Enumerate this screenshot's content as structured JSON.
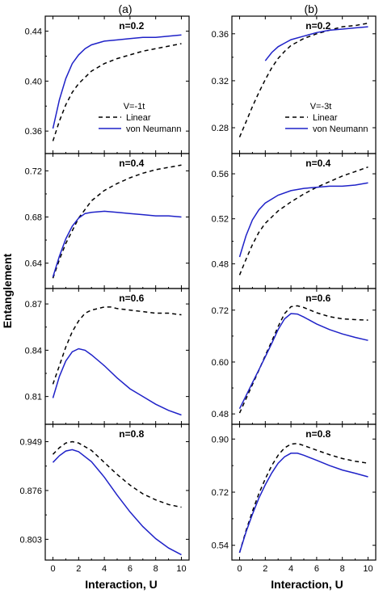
{
  "figure": {
    "column_labels": [
      "(a)",
      "(b)"
    ],
    "y_axis_title": "Entanglement",
    "x_axis_title": "Interaction, U"
  },
  "chart_data": [
    {
      "type": "line",
      "column": 0,
      "row": 0,
      "title": "n=0.2",
      "xlim": [
        -0.6,
        10.6
      ],
      "ylim": [
        0.342,
        0.452
      ],
      "xticks": [
        0,
        2,
        4,
        6,
        8,
        10
      ],
      "xtick_labels": [
        "",
        "",
        "",
        "",
        "",
        ""
      ],
      "yticks": [
        0.36,
        0.4,
        0.44
      ],
      "ytick_labels": [
        "0.36",
        "0.40",
        "0.44"
      ],
      "legend": {
        "header": "V=-1t",
        "entries": [
          "Linear",
          "von Neumann"
        ],
        "placement": "center-right"
      },
      "series": [
        {
          "name": "Linear",
          "style": "dashed",
          "color": "#000000",
          "x": [
            0,
            0.5,
            1,
            1.5,
            2,
            3,
            4,
            5,
            6,
            7,
            8,
            9,
            10
          ],
          "y": [
            0.352,
            0.368,
            0.381,
            0.391,
            0.398,
            0.408,
            0.414,
            0.418,
            0.421,
            0.424,
            0.426,
            0.428,
            0.43
          ]
        },
        {
          "name": "von Neumann",
          "style": "solid",
          "color": "#1f22c8",
          "x": [
            0,
            0.5,
            1,
            1.5,
            2,
            2.5,
            3,
            4,
            5,
            6,
            7,
            8,
            9,
            10
          ],
          "y": [
            0.362,
            0.385,
            0.402,
            0.414,
            0.421,
            0.426,
            0.429,
            0.432,
            0.433,
            0.434,
            0.435,
            0.435,
            0.436,
            0.437
          ]
        }
      ]
    },
    {
      "type": "line",
      "column": 0,
      "row": 1,
      "title": "n=0.4",
      "xlim": [
        -0.6,
        10.6
      ],
      "ylim": [
        0.618,
        0.735
      ],
      "xticks": [
        0,
        2,
        4,
        6,
        8,
        10
      ],
      "xtick_labels": [
        "",
        "",
        "",
        "",
        "",
        ""
      ],
      "yticks": [
        0.64,
        0.68,
        0.72
      ],
      "ytick_labels": [
        "0.64",
        "0.68",
        "0.72"
      ],
      "series": [
        {
          "name": "Linear",
          "style": "dashed",
          "color": "#000000",
          "x": [
            0,
            0.5,
            1,
            1.5,
            2,
            3,
            4,
            5,
            6,
            7,
            8,
            9,
            10
          ],
          "y": [
            0.627,
            0.643,
            0.657,
            0.668,
            0.679,
            0.694,
            0.703,
            0.709,
            0.714,
            0.718,
            0.721,
            0.723,
            0.725
          ]
        },
        {
          "name": "von Neumann",
          "style": "solid",
          "color": "#1f22c8",
          "x": [
            0,
            0.5,
            1,
            1.5,
            2,
            2.5,
            3,
            4,
            5,
            6,
            7,
            8,
            9,
            10
          ],
          "y": [
            0.628,
            0.646,
            0.661,
            0.672,
            0.679,
            0.683,
            0.684,
            0.685,
            0.684,
            0.683,
            0.682,
            0.681,
            0.681,
            0.68
          ]
        }
      ]
    },
    {
      "type": "line",
      "column": 0,
      "row": 2,
      "title": "n=0.6",
      "xlim": [
        -0.6,
        10.6
      ],
      "ylim": [
        0.792,
        0.88
      ],
      "xticks": [
        0,
        2,
        4,
        6,
        8,
        10
      ],
      "xtick_labels": [
        "",
        "",
        "",
        "",
        "",
        ""
      ],
      "yticks": [
        0.81,
        0.84,
        0.87
      ],
      "ytick_labels": [
        "0.81",
        "0.84",
        "0.87"
      ],
      "series": [
        {
          "name": "Linear",
          "style": "dashed",
          "color": "#000000",
          "x": [
            0,
            0.5,
            1,
            1.5,
            2,
            2.5,
            3,
            3.5,
            4,
            4.5,
            5,
            6,
            7,
            8,
            9,
            10
          ],
          "y": [
            0.818,
            0.83,
            0.842,
            0.852,
            0.859,
            0.864,
            0.866,
            0.867,
            0.868,
            0.868,
            0.867,
            0.866,
            0.865,
            0.864,
            0.864,
            0.863
          ]
        },
        {
          "name": "von Neumann",
          "style": "solid",
          "color": "#1f22c8",
          "x": [
            0,
            0.5,
            1,
            1.5,
            2,
            2.5,
            3,
            4,
            5,
            6,
            7,
            8,
            9,
            10
          ],
          "y": [
            0.809,
            0.823,
            0.833,
            0.839,
            0.841,
            0.84,
            0.837,
            0.83,
            0.822,
            0.815,
            0.81,
            0.805,
            0.801,
            0.798
          ]
        }
      ]
    },
    {
      "type": "line",
      "column": 0,
      "row": 3,
      "title": "n=0.8",
      "xlim": [
        -0.6,
        10.6
      ],
      "ylim": [
        0.772,
        0.975
      ],
      "xticks": [
        0,
        2,
        4,
        6,
        8,
        10
      ],
      "xtick_labels": [
        "0",
        "2",
        "4",
        "6",
        "8",
        "10"
      ],
      "yticks": [
        0.803,
        0.876,
        0.949
      ],
      "ytick_labels": [
        "0.803",
        "0.876",
        "0.949"
      ],
      "series": [
        {
          "name": "Linear",
          "style": "dashed",
          "color": "#000000",
          "x": [
            0,
            0.5,
            1,
            1.5,
            2,
            3,
            4,
            5,
            6,
            7,
            8,
            9,
            10
          ],
          "y": [
            0.93,
            0.94,
            0.947,
            0.949,
            0.947,
            0.936,
            0.918,
            0.9,
            0.884,
            0.871,
            0.862,
            0.855,
            0.851
          ]
        },
        {
          "name": "von Neumann",
          "style": "solid",
          "color": "#1f22c8",
          "x": [
            0,
            0.5,
            1,
            1.5,
            2,
            3,
            4,
            5,
            6,
            7,
            8,
            9,
            10
          ],
          "y": [
            0.918,
            0.928,
            0.935,
            0.937,
            0.934,
            0.919,
            0.896,
            0.869,
            0.844,
            0.822,
            0.804,
            0.79,
            0.78
          ]
        }
      ]
    },
    {
      "type": "line",
      "column": 1,
      "row": 0,
      "title": "n=0.2",
      "xlim": [
        -0.6,
        10.6
      ],
      "ylim": [
        0.258,
        0.375
      ],
      "xticks": [
        0,
        2,
        4,
        6,
        8,
        10
      ],
      "xtick_labels": [
        "",
        "",
        "",
        "",
        "",
        ""
      ],
      "yticks": [
        0.28,
        0.32,
        0.36
      ],
      "ytick_labels": [
        "0.28",
        "0.32",
        "0.36"
      ],
      "legend": {
        "header": "V=-3t",
        "entries": [
          "Linear",
          "von Neumann"
        ],
        "placement": "center-right"
      },
      "series": [
        {
          "name": "Linear",
          "style": "dashed",
          "color": "#000000",
          "x": [
            0,
            0.5,
            1,
            1.5,
            2,
            2.5,
            3,
            3.5,
            4,
            5,
            6,
            7,
            8,
            9,
            10
          ],
          "y": [
            0.272,
            0.285,
            0.298,
            0.31,
            0.321,
            0.331,
            0.339,
            0.345,
            0.35,
            0.356,
            0.36,
            0.363,
            0.366,
            0.367,
            0.369
          ]
        },
        {
          "name": "von Neumann",
          "style": "solid",
          "color": "#1f22c8",
          "x": [
            2,
            2.5,
            3,
            3.5,
            4,
            5,
            6,
            7,
            8,
            9,
            10
          ],
          "y": [
            0.337,
            0.344,
            0.349,
            0.352,
            0.355,
            0.358,
            0.361,
            0.363,
            0.364,
            0.365,
            0.366
          ]
        }
      ]
    },
    {
      "type": "line",
      "column": 1,
      "row": 1,
      "title": "n=0.4",
      "xlim": [
        -0.6,
        10.6
      ],
      "ylim": [
        0.458,
        0.578
      ],
      "xticks": [
        0,
        2,
        4,
        6,
        8,
        10
      ],
      "xtick_labels": [
        "",
        "",
        "",
        "",
        "",
        ""
      ],
      "yticks": [
        0.48,
        0.52,
        0.56
      ],
      "ytick_labels": [
        "0.48",
        "0.52",
        "0.56"
      ],
      "series": [
        {
          "name": "Linear",
          "style": "dashed",
          "color": "#000000",
          "x": [
            0,
            0.5,
            1,
            1.5,
            2,
            3,
            4,
            5,
            6,
            7,
            8,
            9,
            10
          ],
          "y": [
            0.47,
            0.484,
            0.497,
            0.508,
            0.516,
            0.527,
            0.535,
            0.542,
            0.548,
            0.553,
            0.558,
            0.562,
            0.566
          ]
        },
        {
          "name": "von Neumann",
          "style": "solid",
          "color": "#1f22c8",
          "x": [
            0,
            0.5,
            1,
            1.5,
            2,
            3,
            4,
            5,
            6,
            7,
            8,
            9,
            10
          ],
          "y": [
            0.486,
            0.505,
            0.519,
            0.528,
            0.534,
            0.541,
            0.545,
            0.547,
            0.548,
            0.549,
            0.549,
            0.55,
            0.552
          ]
        }
      ]
    },
    {
      "type": "line",
      "column": 1,
      "row": 2,
      "title": "n=0.6",
      "xlim": [
        -0.6,
        10.6
      ],
      "ylim": [
        0.456,
        0.77
      ],
      "xticks": [
        0,
        2,
        4,
        6,
        8,
        10
      ],
      "xtick_labels": [
        "",
        "",
        "",
        "",
        "",
        ""
      ],
      "yticks": [
        0.48,
        0.6,
        0.72
      ],
      "ytick_labels": [
        "0.48",
        "0.60",
        "0.72"
      ],
      "series": [
        {
          "name": "Linear",
          "style": "dashed",
          "color": "#000000",
          "x": [
            0,
            0.5,
            1,
            1.5,
            2,
            2.5,
            3,
            3.5,
            4,
            4.5,
            5,
            6,
            7,
            8,
            9,
            10
          ],
          "y": [
            0.482,
            0.515,
            0.548,
            0.581,
            0.615,
            0.648,
            0.682,
            0.712,
            0.728,
            0.73,
            0.726,
            0.714,
            0.705,
            0.7,
            0.698,
            0.697
          ]
        },
        {
          "name": "von Neumann",
          "style": "solid",
          "color": "#1f22c8",
          "x": [
            0,
            0.5,
            1,
            1.5,
            2,
            2.5,
            3,
            3.5,
            4,
            4.5,
            5,
            6,
            7,
            8,
            9,
            10
          ],
          "y": [
            0.492,
            0.522,
            0.552,
            0.582,
            0.612,
            0.643,
            0.675,
            0.7,
            0.712,
            0.711,
            0.704,
            0.688,
            0.675,
            0.665,
            0.657,
            0.65
          ]
        }
      ]
    },
    {
      "type": "line",
      "column": 1,
      "row": 3,
      "title": "n=0.8",
      "xlim": [
        -0.6,
        10.6
      ],
      "ylim": [
        0.49,
        0.95
      ],
      "xticks": [
        0,
        2,
        4,
        6,
        8,
        10
      ],
      "xtick_labels": [
        "0",
        "2",
        "4",
        "6",
        "8",
        "10"
      ],
      "yticks": [
        0.54,
        0.72,
        0.9
      ],
      "ytick_labels": [
        "0.54",
        "0.72",
        "0.90"
      ],
      "series": [
        {
          "name": "Linear",
          "style": "dashed",
          "color": "#000000",
          "x": [
            0,
            0.5,
            1,
            1.5,
            2,
            2.5,
            3,
            3.5,
            4,
            4.5,
            5,
            6,
            7,
            8,
            9,
            10
          ],
          "y": [
            0.515,
            0.59,
            0.655,
            0.715,
            0.765,
            0.81,
            0.845,
            0.87,
            0.883,
            0.885,
            0.878,
            0.862,
            0.847,
            0.834,
            0.825,
            0.818
          ]
        },
        {
          "name": "von Neumann",
          "style": "solid",
          "color": "#1f22c8",
          "x": [
            0,
            0.5,
            1,
            1.5,
            2,
            2.5,
            3,
            3.5,
            4,
            4.5,
            5,
            6,
            7,
            8,
            9,
            10
          ],
          "y": [
            0.515,
            0.585,
            0.645,
            0.7,
            0.745,
            0.785,
            0.818,
            0.84,
            0.852,
            0.852,
            0.845,
            0.828,
            0.81,
            0.795,
            0.784,
            0.772
          ]
        }
      ]
    }
  ]
}
